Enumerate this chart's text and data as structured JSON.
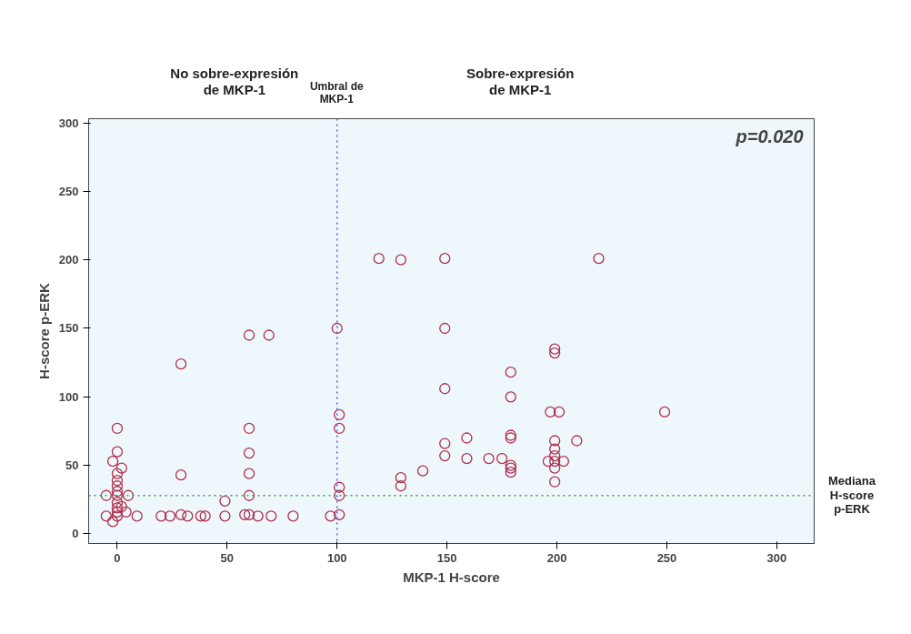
{
  "chart_data": {
    "type": "scatter",
    "xlabel": "MKP-1 H-score",
    "ylabel": "H-score p-ERK",
    "xlim": [
      -13,
      317
    ],
    "ylim": [
      -7,
      303
    ],
    "xticks": [
      0,
      50,
      100,
      150,
      200,
      250,
      300
    ],
    "yticks": [
      0,
      50,
      100,
      150,
      200,
      250,
      300
    ],
    "grid": false,
    "marker": "circle",
    "series": [
      {
        "color": "#b0304f",
        "x": [
          0,
          0,
          -2,
          2,
          0,
          0,
          0,
          0,
          0,
          0,
          0,
          0,
          0,
          -2,
          -5,
          -5,
          5,
          9,
          2,
          4,
          20,
          24,
          29,
          29,
          32,
          38,
          40,
          49,
          49,
          58,
          60,
          60,
          60,
          60,
          60,
          64,
          70,
          80,
          97,
          101,
          101,
          101,
          101,
          101,
          29,
          60,
          69,
          100,
          119,
          129,
          149,
          149,
          149,
          149,
          149,
          129,
          129,
          139,
          159,
          159,
          169,
          175,
          179,
          179,
          179,
          179,
          179,
          179,
          179,
          199,
          199,
          197,
          201,
          199,
          199,
          199,
          199,
          196,
          203,
          199,
          199,
          209,
          219,
          249
        ],
        "values": [
          77,
          60,
          53,
          48,
          44,
          39,
          35,
          31,
          28,
          23,
          19,
          16,
          13,
          9,
          28,
          13,
          28,
          13,
          20,
          16,
          13,
          13,
          43,
          14,
          13,
          13,
          13,
          24,
          13,
          14,
          77,
          59,
          44,
          28,
          14,
          13,
          13,
          13,
          13,
          87,
          77,
          34,
          28,
          14,
          124,
          145,
          145,
          150,
          201,
          200,
          201,
          150,
          106,
          66,
          57,
          41,
          35,
          46,
          70,
          55,
          55,
          55,
          118,
          100,
          72,
          70,
          50,
          48,
          45,
          135,
          132,
          89,
          89,
          68,
          62,
          57,
          53,
          53,
          53,
          48,
          38,
          68,
          201,
          89
        ]
      }
    ],
    "ref_lines": [
      {
        "axis": "x",
        "value": 100,
        "label": "Umbral de\nMKP-1",
        "color": "#5a5adc",
        "line_style": "dotted"
      },
      {
        "axis": "y",
        "value": 28,
        "label": "Mediana\nH-score\np-ERK",
        "color": "#3aa040",
        "line_style": "dotted"
      }
    ],
    "annotations": [
      "No sobre-expresión\nde MKP-1",
      "Sobre-expresión\nde MKP-1",
      "p=0.020"
    ]
  }
}
